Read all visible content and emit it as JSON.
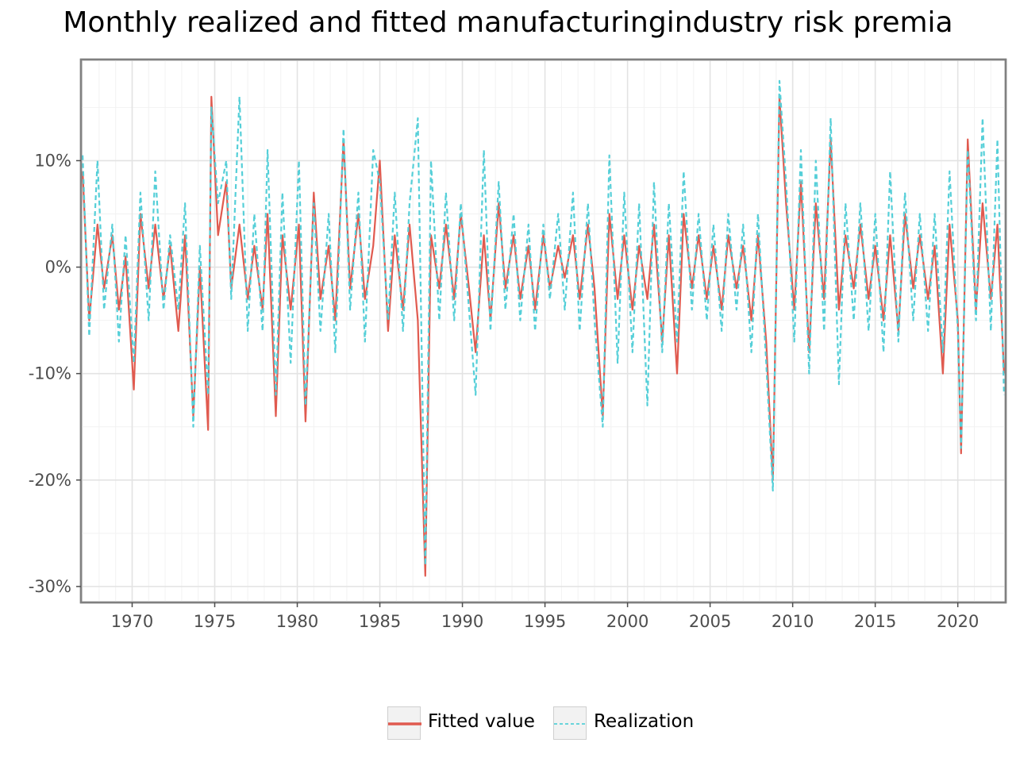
{
  "chart_data": {
    "type": "line",
    "title": "Monthly realized and fitted manufacturingindustry risk premia",
    "xlabel": "",
    "ylabel": "",
    "xlim": [
      1966.9,
      2022.9
    ],
    "ylim": [
      -31.5,
      19.5
    ],
    "x_ticks": [
      1970,
      1975,
      1980,
      1985,
      1990,
      1995,
      2000,
      2005,
      2010,
      2015,
      2020
    ],
    "x_tick_labels": [
      "1970",
      "1975",
      "1980",
      "1985",
      "1990",
      "1995",
      "2000",
      "2005",
      "2010",
      "2015",
      "2020"
    ],
    "y_ticks": [
      -30,
      -20,
      -10,
      0,
      10
    ],
    "y_tick_labels": [
      "-30%",
      "-20%",
      "-10%",
      "0%",
      "10%"
    ],
    "grid": true,
    "legend_position": "bottom",
    "series": [
      {
        "name": "Fitted value",
        "color": "#e05a4f",
        "style": "solid",
        "x": [
          1967.0,
          1967.4,
          1967.9,
          1968.3,
          1968.8,
          1969.2,
          1969.6,
          1970.1,
          1970.5,
          1971.0,
          1971.4,
          1971.9,
          1972.3,
          1972.8,
          1973.2,
          1973.7,
          1974.1,
          1974.6,
          1974.8,
          1975.2,
          1975.7,
          1976.0,
          1976.5,
          1977.0,
          1977.4,
          1977.9,
          1978.2,
          1978.7,
          1979.1,
          1979.6,
          1980.1,
          1980.5,
          1981.0,
          1981.4,
          1981.9,
          1982.3,
          1982.8,
          1983.2,
          1983.7,
          1984.1,
          1984.6,
          1985.0,
          1985.5,
          1985.9,
          1986.4,
          1986.8,
          1987.3,
          1987.75,
          1988.1,
          1988.6,
          1989.0,
          1989.5,
          1989.9,
          1990.4,
          1990.8,
          1991.3,
          1991.7,
          1992.2,
          1992.6,
          1993.1,
          1993.5,
          1994.0,
          1994.4,
          1994.9,
          1995.3,
          1995.8,
          1996.2,
          1996.7,
          1997.1,
          1997.6,
          1998.0,
          1998.5,
          1998.9,
          1999.4,
          1999.8,
          2000.3,
          2000.7,
          2001.2,
          2001.6,
          2002.1,
          2002.5,
          2003.0,
          2003.4,
          2003.9,
          2004.3,
          2004.8,
          2005.2,
          2005.7,
          2006.1,
          2006.6,
          2007.0,
          2007.5,
          2007.9,
          2008.4,
          2008.8,
          2009.2,
          2009.6,
          2010.1,
          2010.5,
          2011.0,
          2011.4,
          2011.9,
          2012.3,
          2012.8,
          2013.2,
          2013.7,
          2014.1,
          2014.6,
          2015.0,
          2015.5,
          2015.9,
          2016.4,
          2016.8,
          2017.3,
          2017.7,
          2018.2,
          2018.6,
          2019.1,
          2019.5,
          2020.0,
          2020.2,
          2020.6,
          2021.1,
          2021.5,
          2022.0,
          2022.4,
          2022.8
        ],
        "y": [
          9.0,
          -5.0,
          4.0,
          -2.0,
          3.0,
          -4.0,
          1.0,
          -11.5,
          5.0,
          -2.0,
          4.0,
          -3.0,
          2.0,
          -6.0,
          3.0,
          -14.0,
          0.0,
          -15.3,
          16.0,
          3.0,
          8.0,
          -2.0,
          4.0,
          -3.0,
          2.0,
          -4.0,
          5.0,
          -14.0,
          3.0,
          -4.0,
          4.0,
          -14.5,
          7.0,
          -3.0,
          2.0,
          -5.0,
          12.0,
          -2.0,
          5.0,
          -3.0,
          2.0,
          10.0,
          -6.0,
          3.0,
          -4.0,
          4.0,
          -5.0,
          -29.0,
          3.0,
          -2.0,
          4.0,
          -3.0,
          5.0,
          -2.0,
          -8.0,
          3.0,
          -5.0,
          6.0,
          -2.0,
          3.0,
          -3.0,
          2.0,
          -4.0,
          3.0,
          -2.0,
          2.0,
          -1.0,
          3.0,
          -3.0,
          4.0,
          -2.0,
          -14.0,
          5.0,
          -3.0,
          3.0,
          -4.0,
          2.0,
          -3.0,
          4.0,
          -7.0,
          3.0,
          -10.0,
          5.0,
          -2.0,
          3.0,
          -3.0,
          2.0,
          -4.0,
          3.0,
          -2.0,
          2.0,
          -5.0,
          3.0,
          -7.0,
          -20.0,
          16.0,
          6.0,
          -4.0,
          8.0,
          -8.0,
          6.0,
          -3.0,
          12.0,
          -4.0,
          3.0,
          -2.0,
          4.0,
          -3.0,
          2.0,
          -5.0,
          3.0,
          -6.0,
          5.0,
          -2.0,
          3.0,
          -3.0,
          2.0,
          -10.0,
          4.0,
          -5.0,
          -17.5,
          12.0,
          -4.0,
          6.0,
          -3.0,
          4.0,
          -10.0
        ]
      },
      {
        "name": "Realization",
        "color": "#55cfd8",
        "style": "dashed",
        "x": [
          1967.0,
          1967.4,
          1967.9,
          1968.3,
          1968.8,
          1969.2,
          1969.6,
          1970.1,
          1970.5,
          1971.0,
          1971.4,
          1971.9,
          1972.3,
          1972.8,
          1973.2,
          1973.7,
          1974.1,
          1974.6,
          1974.8,
          1975.2,
          1975.7,
          1976.0,
          1976.5,
          1977.0,
          1977.4,
          1977.9,
          1978.2,
          1978.7,
          1979.1,
          1979.6,
          1980.1,
          1980.5,
          1981.0,
          1981.4,
          1981.9,
          1982.3,
          1982.8,
          1983.2,
          1983.7,
          1984.1,
          1984.6,
          1985.0,
          1985.5,
          1985.9,
          1986.4,
          1986.8,
          1987.3,
          1987.75,
          1988.1,
          1988.6,
          1989.0,
          1989.5,
          1989.9,
          1990.4,
          1990.8,
          1991.3,
          1991.7,
          1992.2,
          1992.6,
          1993.1,
          1993.5,
          1994.0,
          1994.4,
          1994.9,
          1995.3,
          1995.8,
          1996.2,
          1996.7,
          1997.1,
          1997.6,
          1998.0,
          1998.5,
          1998.9,
          1999.4,
          1999.8,
          2000.3,
          2000.7,
          2001.2,
          2001.6,
          2002.1,
          2002.5,
          2003.0,
          2003.4,
          2003.9,
          2004.3,
          2004.8,
          2005.2,
          2005.7,
          2006.1,
          2006.6,
          2007.0,
          2007.5,
          2007.9,
          2008.4,
          2008.8,
          2009.2,
          2009.6,
          2010.1,
          2010.5,
          2011.0,
          2011.4,
          2011.9,
          2012.3,
          2012.8,
          2013.2,
          2013.7,
          2014.1,
          2014.6,
          2015.0,
          2015.5,
          2015.9,
          2016.4,
          2016.8,
          2017.3,
          2017.7,
          2018.2,
          2018.6,
          2019.1,
          2019.5,
          2020.0,
          2020.2,
          2020.6,
          2021.1,
          2021.5,
          2022.0,
          2022.4,
          2022.8
        ],
        "y": [
          10.5,
          -6.5,
          10.0,
          -4.0,
          4.0,
          -7.0,
          3.0,
          -9.0,
          7.0,
          -5.0,
          9.0,
          -4.0,
          3.0,
          -4.0,
          6.0,
          -15.0,
          2.0,
          -12.0,
          15.0,
          6.0,
          10.0,
          -3.0,
          16.0,
          -6.0,
          5.0,
          -6.0,
          11.0,
          -12.0,
          7.0,
          -9.0,
          10.0,
          -13.0,
          6.0,
          -6.0,
          5.0,
          -8.0,
          13.0,
          -4.0,
          7.0,
          -7.0,
          11.0,
          8.0,
          -5.0,
          7.0,
          -6.0,
          6.0,
          14.0,
          -28.0,
          10.0,
          -5.0,
          7.0,
          -5.0,
          6.0,
          -4.0,
          -12.0,
          11.0,
          -6.0,
          8.0,
          -4.0,
          5.0,
          -5.0,
          4.0,
          -6.0,
          4.0,
          -3.0,
          5.0,
          -4.0,
          7.0,
          -6.0,
          6.0,
          -5.0,
          -15.0,
          10.5,
          -9.0,
          7.0,
          -8.0,
          6.0,
          -13.0,
          8.0,
          -8.0,
          6.0,
          -7.0,
          9.0,
          -4.0,
          5.0,
          -5.0,
          4.0,
          -6.0,
          5.0,
          -4.0,
          4.0,
          -8.0,
          5.0,
          -9.0,
          -21.0,
          17.5,
          8.0,
          -7.0,
          11.0,
          -10.0,
          10.0,
          -6.0,
          14.0,
          -11.0,
          6.0,
          -5.0,
          6.0,
          -6.0,
          5.0,
          -8.0,
          9.0,
          -7.0,
          7.0,
          -5.0,
          5.0,
          -6.0,
          5.0,
          -8.0,
          9.0,
          -6.0,
          -17.0,
          11.0,
          -5.0,
          14.0,
          -6.0,
          12.0,
          -12.0
        ]
      }
    ]
  }
}
